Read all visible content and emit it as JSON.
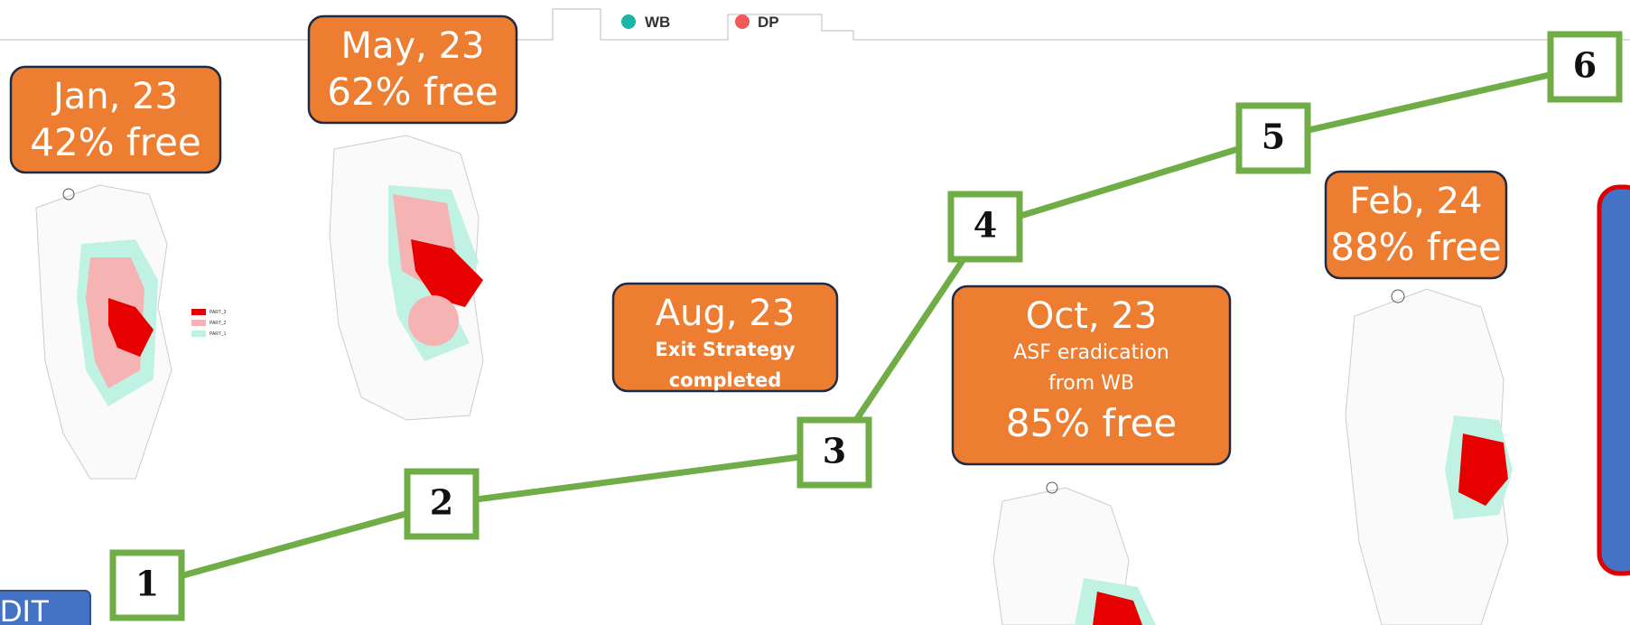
{
  "legend": [
    {
      "label": "WB",
      "color": "#1cb5a8"
    },
    {
      "label": "DP",
      "color": "#f05a5a"
    }
  ],
  "boxes": [
    {
      "title": "Jan, 23",
      "lines": [
        "42% free"
      ]
    },
    {
      "title": "May, 23",
      "lines": [
        "62% free"
      ]
    },
    {
      "title": "Aug, 23",
      "lines": [
        "Exit Strategy",
        "completed"
      ]
    },
    {
      "title": "Oct, 23",
      "lines": [
        "ASF eradication",
        "from WB",
        "85% free"
      ]
    },
    {
      "title": "Feb, 24",
      "lines": [
        "88% free"
      ]
    }
  ],
  "steps": [
    "1",
    "2",
    "3",
    "4",
    "5",
    "6"
  ],
  "map_legend": [
    "PART_3",
    "PART_2",
    "PART_1"
  ],
  "corner_label": "DIT"
}
